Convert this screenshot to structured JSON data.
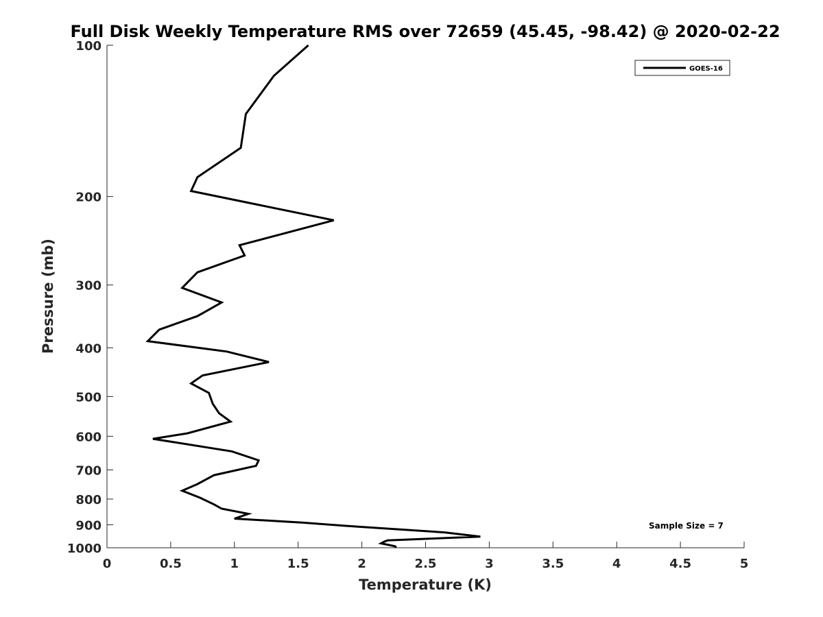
{
  "chart_data": {
    "type": "line",
    "title": "Full Disk Weekly Temperature RMS over 72659 (45.45, -98.42) @ 2020-02-22",
    "xlabel": "Temperature (K)",
    "ylabel": "Pressure (mb)",
    "xlim": [
      0,
      5
    ],
    "ylim": [
      100,
      1000
    ],
    "y_scale": "log",
    "y_reversed": true,
    "x_ticks": [
      "0",
      "0.5",
      "1",
      "1.5",
      "2",
      "2.5",
      "3",
      "3.5",
      "4",
      "4.5",
      "5"
    ],
    "y_ticks": [
      "100",
      "200",
      "300",
      "400",
      "500",
      "600",
      "700",
      "800",
      "900",
      "1000"
    ],
    "grid": false,
    "legend_position": "top-right",
    "series": [
      {
        "name": "GOES-16",
        "color": "#000000",
        "x": [
          1.58,
          1.31,
          1.09,
          1.05,
          0.71,
          0.66,
          1.78,
          1.04,
          1.08,
          0.71,
          0.59,
          0.9,
          0.71,
          0.41,
          0.32,
          0.94,
          1.27,
          0.75,
          0.66,
          0.8,
          0.83,
          0.88,
          0.97,
          0.63,
          0.36,
          0.98,
          1.19,
          1.17,
          0.84,
          0.71,
          0.59,
          0.73,
          0.84,
          0.9,
          1.11,
          1.0,
          1.53,
          1.97,
          2.65,
          2.93,
          2.2,
          2.17,
          2.15,
          2.26,
          2.27
        ],
        "y": [
          100,
          115,
          137,
          160,
          183,
          195,
          223,
          250,
          262,
          283,
          304,
          325,
          346,
          368,
          388,
          407,
          427,
          454,
          471,
          492,
          517,
          540,
          561,
          592,
          607,
          643,
          670,
          687,
          717,
          747,
          770,
          795,
          820,
          836,
          856,
          875,
          891,
          908,
          932,
          950,
          967,
          974,
          980,
          993,
          999
        ]
      }
    ],
    "annotations": [
      "Sample Size = 7"
    ]
  }
}
